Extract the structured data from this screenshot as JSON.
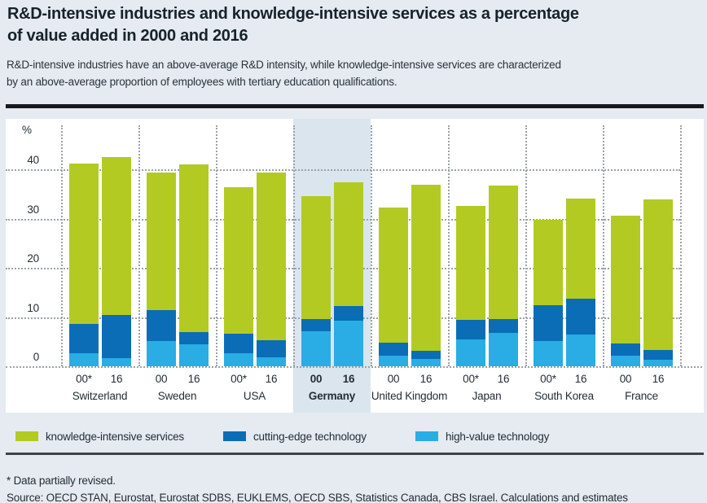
{
  "header": {
    "title_lines": [
      "R&D-intensive industries and knowledge-intensive services as a percentage",
      "of value added in 2000 and 2016"
    ],
    "subtitle_lines": [
      "R&D-intensive industries have an above-average R&D intensity, while knowledge-intensive services are characterized",
      "by an above-average proportion of employees with tertiary education qualifications."
    ]
  },
  "chart_data": {
    "type": "bar",
    "stacked": true,
    "unit_label": "%",
    "y_ticks": [
      0,
      10,
      20,
      30,
      40
    ],
    "ylim": [
      0,
      49
    ],
    "grid": "dotted",
    "legend_position": "bottom",
    "highlighted_group": "Germany",
    "series": [
      {
        "key": "high_value_technology",
        "label": "high-value technology",
        "color": "#29ade4"
      },
      {
        "key": "cutting_edge_technology",
        "label": "cutting-edge technology",
        "color": "#0b6db6"
      },
      {
        "key": "knowledge_intensive_services",
        "label": "knowledge-intensive services",
        "color": "#b3ca23"
      }
    ],
    "groups": [
      {
        "country": "Switzerland",
        "highlight": false,
        "bars": [
          {
            "year": "00*",
            "values": {
              "high_value_technology": 2.6,
              "cutting_edge_technology": 5.9,
              "knowledge_intensive_services": 32.6
            },
            "total": 41.1
          },
          {
            "year": "16",
            "values": {
              "high_value_technology": 1.7,
              "cutting_edge_technology": 8.7,
              "knowledge_intensive_services": 32.0
            },
            "total": 42.4
          }
        ]
      },
      {
        "country": "Sweden",
        "highlight": false,
        "bars": [
          {
            "year": "00",
            "values": {
              "high_value_technology": 5.2,
              "cutting_edge_technology": 6.3,
              "knowledge_intensive_services": 27.9
            },
            "total": 39.4
          },
          {
            "year": "16",
            "values": {
              "high_value_technology": 4.4,
              "cutting_edge_technology": 2.4,
              "knowledge_intensive_services": 34.1
            },
            "total": 40.9
          }
        ]
      },
      {
        "country": "USA",
        "highlight": false,
        "bars": [
          {
            "year": "00*",
            "values": {
              "high_value_technology": 2.7,
              "cutting_edge_technology": 4.0,
              "knowledge_intensive_services": 29.7
            },
            "total": 36.4
          },
          {
            "year": "16",
            "values": {
              "high_value_technology": 1.8,
              "cutting_edge_technology": 3.5,
              "knowledge_intensive_services": 34.0
            },
            "total": 39.3
          }
        ]
      },
      {
        "country": "Germany",
        "highlight": true,
        "bars": [
          {
            "year": "00",
            "values": {
              "high_value_technology": 7.1,
              "cutting_edge_technology": 2.5,
              "knowledge_intensive_services": 24.9
            },
            "total": 34.5
          },
          {
            "year": "16",
            "values": {
              "high_value_technology": 9.3,
              "cutting_edge_technology": 2.9,
              "knowledge_intensive_services": 25.1
            },
            "total": 37.3
          }
        ]
      },
      {
        "country": "United Kingdom",
        "highlight": false,
        "bars": [
          {
            "year": "00",
            "values": {
              "high_value_technology": 2.2,
              "cutting_edge_technology": 2.7,
              "knowledge_intensive_services": 27.4
            },
            "total": 32.3
          },
          {
            "year": "16",
            "values": {
              "high_value_technology": 1.5,
              "cutting_edge_technology": 1.7,
              "knowledge_intensive_services": 33.8
            },
            "total": 37.0
          }
        ]
      },
      {
        "country": "Japan",
        "highlight": false,
        "bars": [
          {
            "year": "00*",
            "values": {
              "high_value_technology": 5.4,
              "cutting_edge_technology": 4.0,
              "knowledge_intensive_services": 23.2
            },
            "total": 32.6
          },
          {
            "year": "16",
            "values": {
              "high_value_technology": 6.8,
              "cutting_edge_technology": 2.8,
              "knowledge_intensive_services": 27.1
            },
            "total": 36.7
          }
        ]
      },
      {
        "country": "South Korea",
        "highlight": false,
        "bars": [
          {
            "year": "00*",
            "values": {
              "high_value_technology": 5.2,
              "cutting_edge_technology": 7.3,
              "knowledge_intensive_services": 17.4
            },
            "total": 29.9
          },
          {
            "year": "16",
            "values": {
              "high_value_technology": 6.4,
              "cutting_edge_technology": 7.3,
              "knowledge_intensive_services": 20.4
            },
            "total": 34.1
          }
        ]
      },
      {
        "country": "France",
        "highlight": false,
        "bars": [
          {
            "year": "00",
            "values": {
              "high_value_technology": 2.2,
              "cutting_edge_technology": 2.5,
              "knowledge_intensive_services": 26.0
            },
            "total": 30.7
          },
          {
            "year": "16",
            "values": {
              "high_value_technology": 1.4,
              "cutting_edge_technology": 2.0,
              "knowledge_intensive_services": 30.6
            },
            "total": 34.0
          }
        ]
      }
    ]
  },
  "legend": {
    "items": [
      {
        "label": "knowledge-intensive services",
        "color": "#b3ca23"
      },
      {
        "label": "cutting-edge technology",
        "color": "#0b6db6"
      },
      {
        "label": "high-value technology",
        "color": "#29ade4"
      }
    ]
  },
  "footnotes": {
    "revision_note": "* Data partially revised.",
    "source": "Source: OECD STAN, Eurostat, Eurostat SDBS, EUKLEMS, OECD SBS, Statistics Canada, CBS Israel. Calculations and estimates"
  },
  "colors": {
    "page_background": "#e5ebf0",
    "plot_background": "#ffffff",
    "highlight_band": "#dbe5ed",
    "knowledge_intensive_services": "#b3ca23",
    "cutting_edge_technology": "#0b6db6",
    "high_value_technology": "#29ade4",
    "gridline": "#9aa2a8",
    "top_rule": "#17191c",
    "bottom_rule": "#3c4349",
    "text": "#242e36"
  }
}
